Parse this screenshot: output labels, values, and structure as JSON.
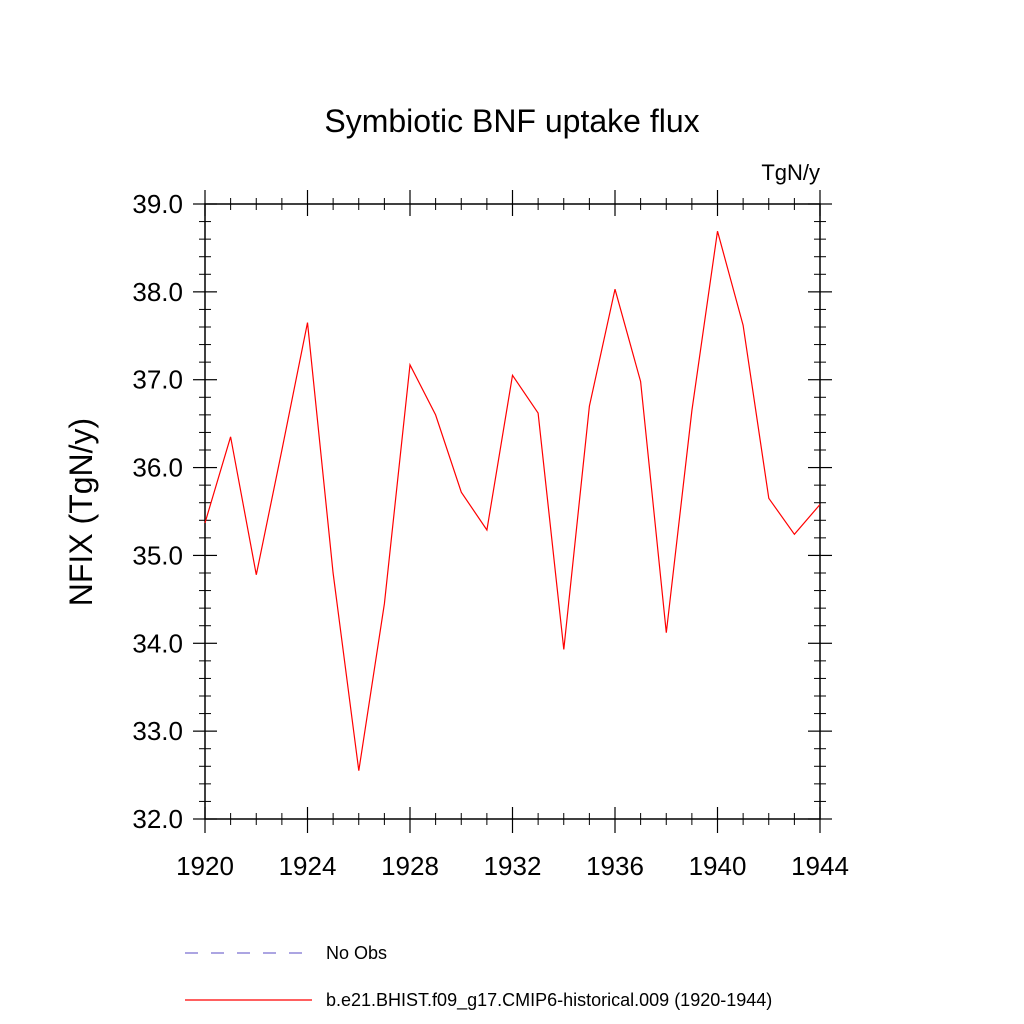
{
  "chart_data": {
    "type": "line",
    "title": "Symbiotic BNF uptake flux",
    "units": "TgN/y",
    "xlabel": "",
    "ylabel": "NFIX  (TgN/y)",
    "xlim": [
      1920,
      1944
    ],
    "ylim": [
      32.0,
      39.0
    ],
    "x_ticks": [
      1920,
      1924,
      1928,
      1932,
      1936,
      1940,
      1944
    ],
    "y_ticks": [
      "32.0",
      "33.0",
      "34.0",
      "35.0",
      "36.0",
      "37.0",
      "38.0",
      "39.0"
    ],
    "grid": false,
    "legend_position": "bottom",
    "series": [
      {
        "name": "b.e21.BHIST.f09_g17.CMIP6-historical.009 (1920-1944)",
        "color": "#ff0000",
        "style": "solid",
        "x": [
          1920,
          1921,
          1922,
          1923,
          1924,
          1925,
          1926,
          1927,
          1928,
          1929,
          1930,
          1931,
          1932,
          1933,
          1934,
          1935,
          1936,
          1937,
          1938,
          1939,
          1940,
          1941,
          1942,
          1943,
          1944
        ],
        "y": [
          35.37,
          36.35,
          34.78,
          36.2,
          37.65,
          34.8,
          32.55,
          34.45,
          37.17,
          36.6,
          35.72,
          35.29,
          37.05,
          36.62,
          33.93,
          36.7,
          38.03,
          36.98,
          34.12,
          36.65,
          38.69,
          37.62,
          35.65,
          35.24,
          35.58
        ]
      }
    ],
    "legend": [
      {
        "label": "No Obs",
        "color": "#7b6fd0",
        "style": "dashed"
      },
      {
        "label": "b.e21.BHIST.f09_g17.CMIP6-historical.009 (1920-1944)",
        "color": "#ff0000",
        "style": "solid"
      }
    ]
  }
}
